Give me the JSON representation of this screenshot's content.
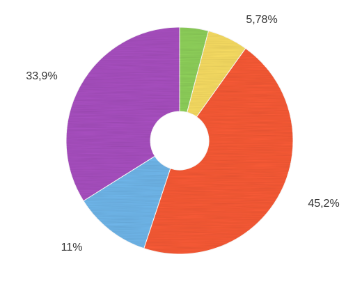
{
  "chart_data": {
    "type": "pie",
    "variant": "donut",
    "start_angle_deg": 0,
    "slices": [
      {
        "value": 4.1,
        "label": "",
        "color": "#8ed05a"
      },
      {
        "value": 5.78,
        "label": "5,78%",
        "color": "#f7dc62"
      },
      {
        "value": 45.2,
        "label": "45,2%",
        "color": "#f85a35"
      },
      {
        "value": 11,
        "label": "11%",
        "color": "#6fb6ea"
      },
      {
        "value": 33.9,
        "label": "33,9%",
        "color": "#a84fc0"
      }
    ]
  }
}
